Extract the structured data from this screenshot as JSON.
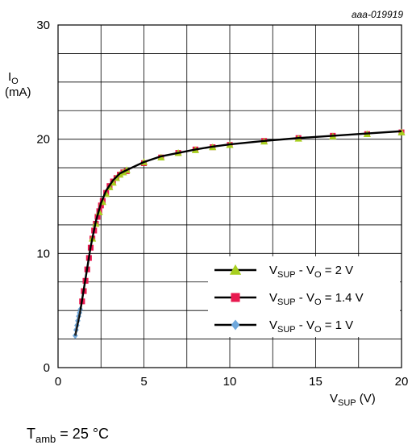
{
  "chart_data": {
    "type": "line",
    "figure_id": "aaa-019919",
    "ylabel": {
      "symbol": "I",
      "sub": "O",
      "unit": "(mA)"
    },
    "xlabel": {
      "symbol": "V",
      "sub": "SUP",
      "unit": " (V)"
    },
    "condition": {
      "symbol": "T",
      "sub": "amb",
      "rest": " = 25 °C"
    },
    "xlim": [
      0,
      20
    ],
    "ylim": [
      0,
      30
    ],
    "x_ticks": [
      0,
      5,
      10,
      15,
      20
    ],
    "y_ticks": [
      0,
      10,
      20,
      30
    ],
    "grid": true,
    "legend_position": "lower-right",
    "curve": {
      "color": "#000000",
      "x": [
        1.0,
        1.3,
        1.6,
        1.9,
        2.2,
        2.5,
        2.8,
        3.2,
        3.6,
        4.0,
        5.0,
        6.0,
        7.0,
        8.0,
        9.0,
        10.0,
        12.0,
        14.0,
        16.0,
        18.0,
        20.0
      ],
      "y": [
        2.8,
        5.0,
        7.8,
        10.6,
        12.8,
        14.4,
        15.5,
        16.4,
        17.0,
        17.3,
        18.0,
        18.5,
        18.8,
        19.1,
        19.35,
        19.55,
        19.85,
        20.1,
        20.3,
        20.5,
        20.7
      ]
    },
    "series": [
      {
        "name": {
          "a": "V",
          "a_sub": "SUP",
          "b": " - V",
          "b_sub": "O",
          "c": " = 1 V"
        },
        "color": "#6fa8dc",
        "marker": "diamond",
        "x": [
          1.0,
          1.05,
          1.1,
          1.15,
          1.2,
          1.25,
          1.3
        ],
        "y": [
          2.8,
          3.3,
          3.7,
          4.1,
          4.5,
          4.8,
          5.1
        ]
      },
      {
        "name": {
          "a": "V",
          "a_sub": "SUP",
          "b": " - V",
          "b_sub": "O",
          "c": " = 1.4 V"
        },
        "color": "#e8194f",
        "marker": "square",
        "x": [
          1.4,
          1.5,
          1.6,
          1.7,
          1.8,
          1.9,
          2.0,
          2.1,
          2.2,
          2.3,
          2.4,
          2.5,
          2.6,
          2.8,
          3.0,
          3.2,
          3.4,
          3.6,
          3.8,
          4.0,
          5.0,
          6.0,
          7.0,
          8.0,
          9.0,
          10.0,
          12.0,
          14.0,
          16.0,
          18.0,
          20.0
        ],
        "y": [
          5.8,
          6.7,
          7.6,
          8.6,
          9.6,
          10.5,
          11.3,
          12.0,
          12.6,
          13.2,
          13.7,
          14.2,
          14.6,
          15.3,
          15.9,
          16.3,
          16.6,
          16.9,
          17.1,
          17.2,
          17.9,
          18.4,
          18.8,
          19.1,
          19.3,
          19.5,
          19.85,
          20.1,
          20.3,
          20.45,
          20.6
        ]
      },
      {
        "name": {
          "a": "V",
          "a_sub": "SUP",
          "b": " - V",
          "b_sub": "O",
          "c": " = 2 V"
        },
        "color": "#a7cf1f",
        "marker": "triangle",
        "x": [
          2.0,
          2.2,
          2.4,
          2.6,
          2.8,
          3.0,
          3.2,
          3.4,
          3.6,
          3.8,
          4.0,
          5.0,
          6.0,
          7.0,
          8.0,
          9.0,
          10.0,
          12.0,
          14.0,
          16.0,
          18.0,
          20.0
        ],
        "y": [
          11.3,
          12.6,
          13.6,
          14.5,
          15.2,
          15.8,
          16.2,
          16.6,
          16.9,
          17.1,
          17.3,
          18.0,
          18.4,
          18.8,
          19.05,
          19.3,
          19.5,
          19.8,
          20.05,
          20.25,
          20.45,
          20.6
        ]
      }
    ],
    "legend_order": [
      2,
      1,
      0
    ]
  }
}
